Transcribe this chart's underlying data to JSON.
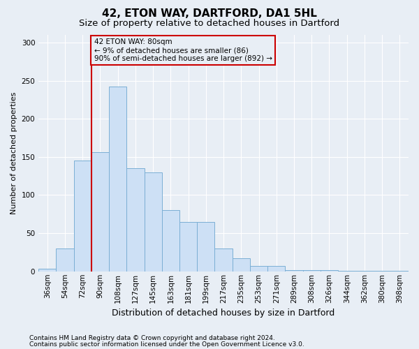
{
  "title1": "42, ETON WAY, DARTFORD, DA1 5HL",
  "title2": "Size of property relative to detached houses in Dartford",
  "xlabel": "Distribution of detached houses by size in Dartford",
  "ylabel": "Number of detached properties",
  "categories": [
    "36sqm",
    "54sqm",
    "72sqm",
    "90sqm",
    "108sqm",
    "127sqm",
    "145sqm",
    "163sqm",
    "181sqm",
    "199sqm",
    "217sqm",
    "235sqm",
    "253sqm",
    "271sqm",
    "289sqm",
    "308sqm",
    "326sqm",
    "344sqm",
    "362sqm",
    "380sqm",
    "398sqm"
  ],
  "values": [
    3,
    30,
    145,
    156,
    242,
    135,
    130,
    80,
    65,
    65,
    30,
    17,
    7,
    7,
    2,
    2,
    2,
    1,
    1,
    1,
    1
  ],
  "bar_color": "#cde0f5",
  "bar_edge_color": "#7bafd4",
  "bg_color": "#e8eef5",
  "grid_color": "#ffffff",
  "vline_color": "#cc0000",
  "vline_x": 2.5,
  "annotation_text": "42 ETON WAY: 80sqm\n← 9% of detached houses are smaller (86)\n90% of semi-detached houses are larger (892) →",
  "annotation_box_color": "#cc0000",
  "footer1": "Contains HM Land Registry data © Crown copyright and database right 2024.",
  "footer2": "Contains public sector information licensed under the Open Government Licence v3.0.",
  "ylim": [
    0,
    310
  ],
  "yticks": [
    0,
    50,
    100,
    150,
    200,
    250,
    300
  ],
  "title1_fontsize": 11,
  "title2_fontsize": 9.5,
  "xlabel_fontsize": 9,
  "ylabel_fontsize": 8,
  "tick_fontsize": 7.5,
  "annotation_fontsize": 7.5,
  "footer_fontsize": 6.5
}
